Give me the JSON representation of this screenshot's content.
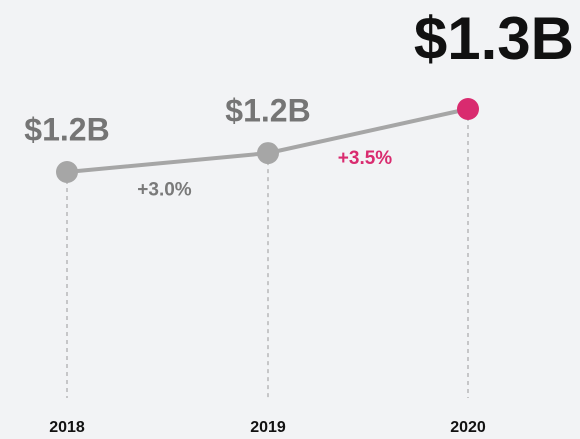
{
  "chart_data": {
    "type": "line",
    "categories": [
      "2018",
      "2019",
      "2020"
    ],
    "series": [
      {
        "name": null,
        "color": "#a6a6a6",
        "values": [
          1.2,
          1.23,
          1.3
        ],
        "value_labels": [
          "$1.2B",
          "$1.2B",
          "$1.3B"
        ]
      }
    ],
    "highlight_color": "#d92b6f",
    "ylim": [
      0.9,
      1.4
    ],
    "annotations": [
      {
        "text": "+3.0%",
        "color": "#7a7a7a"
      },
      {
        "text": "+3.5%",
        "color": "#d92b6f"
      }
    ]
  }
}
